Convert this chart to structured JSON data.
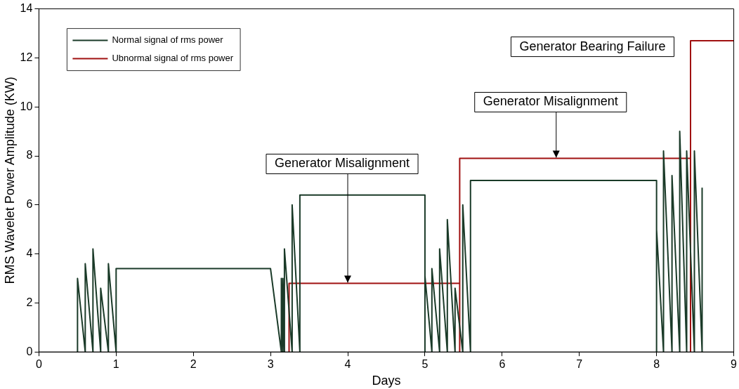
{
  "chart_data": {
    "type": "line",
    "xlabel": "Days",
    "ylabel": "RMS Wavelet Power Amplitude (KW)",
    "xlim": [
      0,
      9
    ],
    "xticks": [
      0,
      1,
      2,
      3,
      4,
      5,
      6,
      7,
      8,
      9
    ],
    "ylim": [
      0,
      14
    ],
    "yticks": [
      0,
      2,
      4,
      6,
      8,
      10,
      12,
      14
    ],
    "grid": false,
    "legend": "top left",
    "marker": "none",
    "line_style": "solid",
    "series": [
      {
        "name": "Normal signal of rms power",
        "color": "#1a3a28",
        "x": [
          0.5,
          0.5,
          0.6,
          0.6,
          0.7,
          0.7,
          0.8,
          0.8,
          0.9,
          0.9,
          1.0,
          1.0,
          3.0,
          3.14,
          3.14,
          3.16,
          3.16,
          3.18,
          3.18,
          3.28,
          3.28,
          3.38,
          3.38,
          5.0,
          5.0,
          5.0,
          5.09,
          5.09,
          5.19,
          5.19,
          5.29,
          5.29,
          5.39,
          5.39,
          5.49,
          5.49,
          5.59,
          5.59,
          8.0,
          8.0,
          8.0,
          8.09,
          8.09,
          8.2,
          8.2,
          8.3,
          8.3,
          8.39,
          8.39,
          8.49,
          8.49,
          8.59,
          8.59
        ],
        "values": [
          0,
          3,
          0,
          3.6,
          0,
          4.2,
          0,
          2.6,
          0,
          3.6,
          0,
          3.4,
          3.4,
          0,
          3,
          0,
          3,
          0,
          4.2,
          0,
          6,
          0,
          6.4,
          6.4,
          0,
          3.1,
          0,
          3.4,
          0,
          4.2,
          0,
          5.4,
          0,
          2.6,
          0,
          6,
          0,
          7,
          7,
          0,
          5,
          0,
          8.2,
          0,
          7.2,
          0,
          9,
          0,
          8.2,
          0,
          8.2,
          0,
          6.7
        ]
      },
      {
        "name": "Ubnormal signal of rms power",
        "color": "#a01010",
        "x": [
          3.24,
          3.24,
          5.45,
          5.45,
          5.45,
          8.44,
          8.44,
          8.44,
          9
        ],
        "values": [
          0,
          2.8,
          2.8,
          0,
          7.9,
          7.9,
          0,
          12.7,
          12.7
        ]
      }
    ],
    "annotations": [
      {
        "text": "Generator Misalignment",
        "x": 4,
        "y": 2.8
      },
      {
        "text": "Generator Misalignment",
        "x": 6.7,
        "y": 7.9
      },
      "Generator Bearing Failure"
    ]
  }
}
